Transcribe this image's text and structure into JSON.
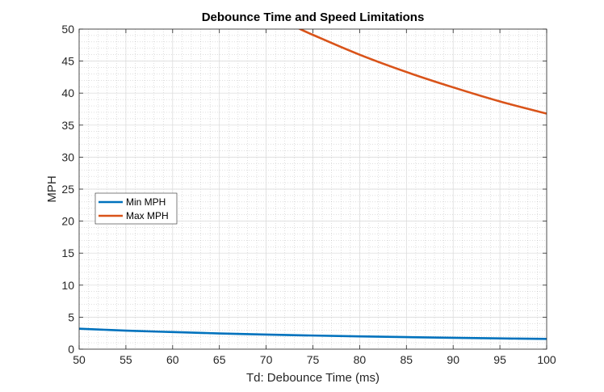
{
  "chart_data": {
    "type": "line",
    "title": "Debounce Time and Speed Limitations",
    "xlabel": "Td: Debounce Time (ms)",
    "ylabel": "MPH",
    "xlim": [
      50,
      100
    ],
    "ylim": [
      0,
      50
    ],
    "xticks": [
      50,
      55,
      60,
      65,
      70,
      75,
      80,
      85,
      90,
      95,
      100
    ],
    "yticks": [
      0,
      5,
      10,
      15,
      20,
      25,
      30,
      35,
      40,
      45,
      50
    ],
    "grid": true,
    "minor_grid": true,
    "legend_position": "middle-left",
    "series": [
      {
        "name": "Min MPH",
        "color": "#0072BD",
        "x": [
          50,
          55,
          60,
          65,
          70,
          75,
          80,
          85,
          90,
          95,
          100
        ],
        "y": [
          3.2,
          2.9,
          2.67,
          2.46,
          2.28,
          2.13,
          2.0,
          1.88,
          1.78,
          1.68,
          1.6
        ]
      },
      {
        "name": "Max MPH",
        "color": "#D95319",
        "x": [
          73.5,
          75,
          80,
          85,
          90,
          95,
          100
        ],
        "y": [
          50.1,
          49.1,
          46.0,
          43.3,
          40.9,
          38.7,
          36.8
        ]
      }
    ]
  }
}
